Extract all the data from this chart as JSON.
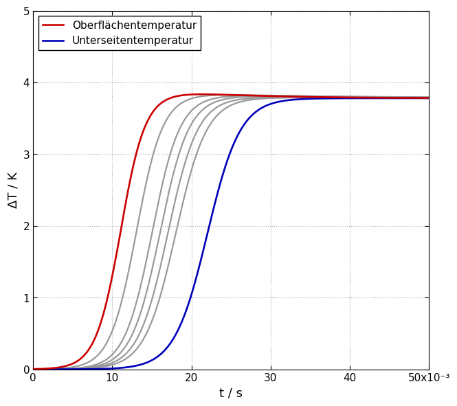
{
  "xlabel": "t / s",
  "ylabel": "ΔT / K",
  "xlim": [
    0,
    0.05
  ],
  "ylim": [
    0,
    5
  ],
  "xticks": [
    0,
    0.01,
    0.02,
    0.03,
    0.04,
    0.05
  ],
  "xticklabels": [
    "0",
    "10",
    "20",
    "30",
    "40",
    "50x10⁻³"
  ],
  "yticks": [
    0,
    1,
    2,
    3,
    4,
    5
  ],
  "steady_state": 3.78,
  "n_gray_curves": 5,
  "red_color": "#cc0000",
  "blue_color": "#0000bb",
  "gray_color": "#999999",
  "legend_labels": [
    "Oberflächentemperatur",
    "Unterseitentemperatur"
  ],
  "background_color": "#ffffff",
  "grid_color": "#aaaaaa",
  "line_width": 1.6,
  "tick_label_fontsize": 11,
  "axis_label_fontsize": 13,
  "legend_fontsize": 11
}
